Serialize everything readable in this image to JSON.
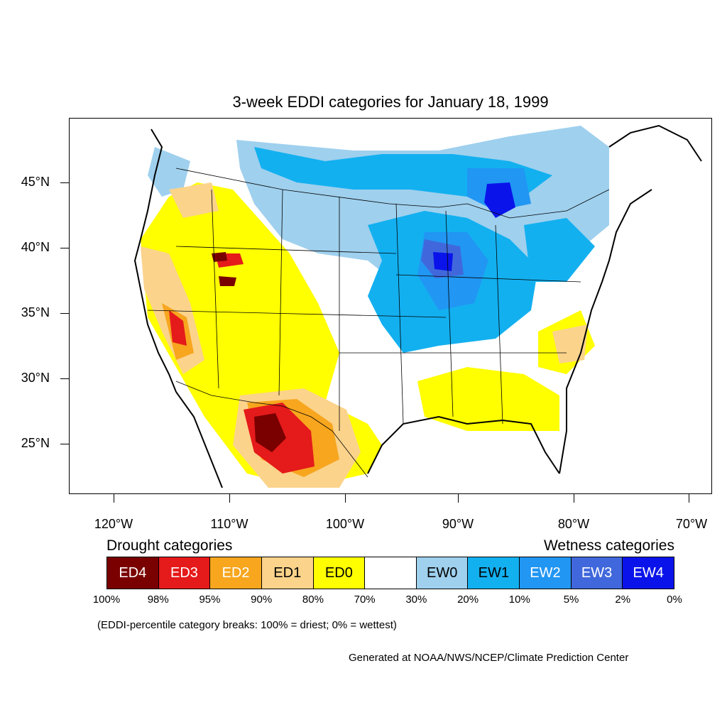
{
  "title": "3-week EDDI categories for January 18, 1999",
  "lat_labels": [
    "45°N",
    "40°N",
    "35°N",
    "30°N",
    "25°N"
  ],
  "lon_labels": [
    "120°W",
    "110°W",
    "100°W",
    "90°W",
    "80°W",
    "70°W"
  ],
  "legend": {
    "drought_title": "Drought categories",
    "wetness_title": "Wetness categories",
    "categories": [
      {
        "label": "ED4",
        "color": "#7a0000",
        "text_color": "#ffffff"
      },
      {
        "label": "ED3",
        "color": "#e51a1a",
        "text_color": "#ffffff"
      },
      {
        "label": "ED2",
        "color": "#f7a61e",
        "text_color": "#ffffff"
      },
      {
        "label": "ED1",
        "color": "#fbd38b",
        "text_color": "#000000"
      },
      {
        "label": "ED0",
        "color": "#ffff00",
        "text_color": "#000000"
      },
      {
        "label": "",
        "color": "#ffffff",
        "text_color": "#000000"
      },
      {
        "label": "EW0",
        "color": "#9fd0ee",
        "text_color": "#000000"
      },
      {
        "label": "EW1",
        "color": "#13b0f0",
        "text_color": "#000000"
      },
      {
        "label": "EW2",
        "color": "#2196f3",
        "text_color": "#ffffff"
      },
      {
        "label": "EW3",
        "color": "#4068dc",
        "text_color": "#ffffff"
      },
      {
        "label": "EW4",
        "color": "#0a14ea",
        "text_color": "#ffffff"
      }
    ],
    "percentiles": [
      "100%",
      "98%",
      "95%",
      "90%",
      "80%",
      "70%",
      "30%",
      "20%",
      "10%",
      "5%",
      "2%",
      "0%"
    ]
  },
  "break_note": "(EDDI-percentile category breaks: 100% = driest; 0% = wettest)",
  "credit": "Generated at NOAA/NWS/NCEP/Climate Prediction Center"
}
